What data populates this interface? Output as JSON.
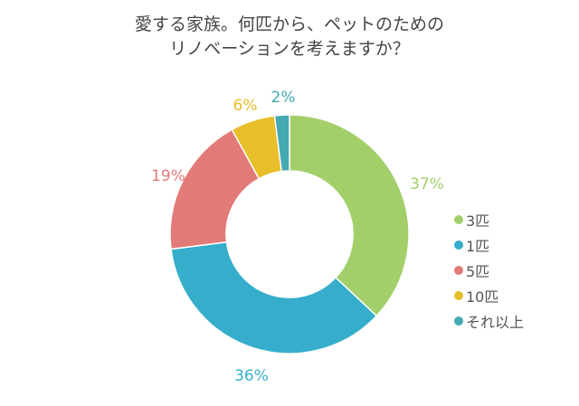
{
  "chart_data": {
    "type": "pie",
    "variant": "donut",
    "title": "愛する家族。何匹から、ペットのためのリノベーションを考えますか？",
    "title_lines": [
      "愛する家族。何匹から、ペットのための",
      "リノベーションを考えますか？"
    ],
    "categories": [
      "3匹",
      "1匹",
      "5匹",
      "10匹",
      "それ以上"
    ],
    "values": [
      37,
      36,
      19,
      6,
      2
    ],
    "value_labels": [
      "37%",
      "36%",
      "19%",
      "6%",
      "2%"
    ],
    "colors": [
      "#a3cf6b",
      "#36aecb",
      "#e27a78",
      "#e8be2a",
      "#42aab0"
    ],
    "unit": "%",
    "start_angle": "top, clockwise",
    "legend_position": "right"
  },
  "labels": {
    "s0": "37%",
    "s1": "36%",
    "s2": "19%",
    "s3": "6%",
    "s4": "2%"
  },
  "legend": {
    "items": [
      {
        "label": "3匹",
        "color": "#a3cf6b"
      },
      {
        "label": "1匹",
        "color": "#36aecb"
      },
      {
        "label": "5匹",
        "color": "#e27a78"
      },
      {
        "label": "10匹",
        "color": "#e8be2a"
      },
      {
        "label": "それ以上",
        "color": "#42aab0"
      }
    ]
  }
}
